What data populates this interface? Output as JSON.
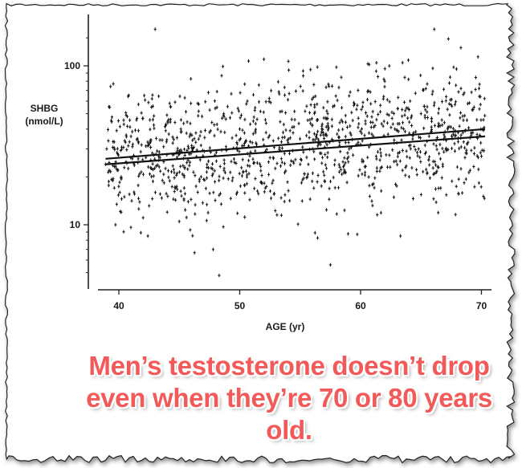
{
  "caption": {
    "line1": "Men’s testosterone doesn’t drop",
    "line2": "even when they’re 70 or 80 years",
    "line3": "old."
  },
  "chart_data": {
    "type": "scatter",
    "title": "",
    "xlabel": "AGE (yr)",
    "ylabel_line1": "SHBG",
    "ylabel_line2": "(nmol/L)",
    "x_ticks": [
      "40",
      "50",
      "60",
      "70"
    ],
    "y_ticks": [
      "10",
      "100"
    ],
    "xlim": [
      38.5,
      71
    ],
    "ylim": [
      4.5,
      190
    ],
    "y_scale": "log",
    "grid": false,
    "legend": "none",
    "series": [
      {
        "x": [
          38.9,
          39.0,
          39.2,
          39.5,
          41.6,
          42.1,
          43.0,
          44.2,
          45.4,
          47.8,
          48.3,
          49.3,
          50.6,
          52.0,
          53.2,
          54.3,
          55.6,
          57.5,
          58.0,
          59.8,
          61.0,
          62.0,
          63.3,
          64.8,
          65.5,
          66.1,
          67.2,
          67.7,
          68.3,
          69.4,
          69.8,
          70.2,
          40.2,
          41.0,
          42.4,
          43.6,
          44.0,
          46.1,
          48.7,
          51.3,
          53.7,
          56.2,
          58.9,
          60.4,
          62.9,
          64.1,
          66.8,
          68.9,
          40.7,
          45.0,
          50.0,
          55.0,
          60.0,
          65.0,
          70.0
        ],
        "y": [
          24,
          30,
          22,
          19,
          26,
          65,
          170,
          58,
          20,
          7,
          4.8,
          25,
          20,
          110,
          35,
          46,
          20,
          5.6,
          98,
          33,
          44,
          80,
          8.5,
          30,
          21,
          170,
          40,
          98,
          130,
          28,
          72,
          40,
          12,
          36,
          8.5,
          19,
          12,
          30,
          22,
          38,
          14,
          55,
          26,
          45,
          18,
          60,
          24,
          33,
          48,
          28,
          40,
          24,
          32,
          50,
          27
        ],
        "note": "representative subset of ~1000 points; cloud spans ages 39-70, SHBG ~5-170 nmol/L"
      }
    ],
    "regression_lines": [
      {
        "x": [
          38.9,
          70.3
        ],
        "y": [
          26,
          40
        ]
      },
      {
        "x": [
          38.9,
          70.3
        ],
        "y": [
          24,
          36
        ]
      }
    ]
  }
}
